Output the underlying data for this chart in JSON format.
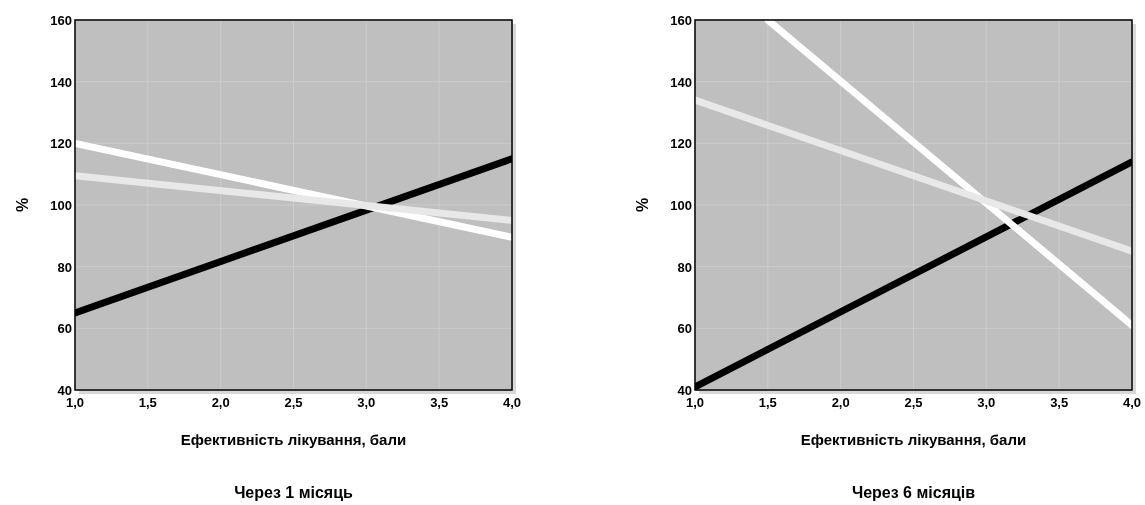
{
  "chart_data": [
    {
      "type": "line",
      "title": "Через 1 місяць",
      "xlabel": "Ефективність лікування, бали",
      "ylabel": "%",
      "xlim": [
        1,
        4
      ],
      "ylim": [
        40,
        160
      ],
      "xticks": [
        {
          "value": 1,
          "label": "1,0"
        },
        {
          "value": 1.5,
          "label": "1,5"
        },
        {
          "value": 2,
          "label": "2,0"
        },
        {
          "value": 2.5,
          "label": "2,5"
        },
        {
          "value": 3,
          "label": "3,0"
        },
        {
          "value": 3.5,
          "label": "3,5"
        },
        {
          "value": 4,
          "label": "4,0"
        }
      ],
      "yticks": [
        40,
        60,
        80,
        100,
        120,
        140,
        160
      ],
      "grid": true,
      "series": [
        {
          "color": "#000000",
          "x": [
            1,
            4
          ],
          "values": [
            65,
            115
          ]
        },
        {
          "color": "#ffffff",
          "x": [
            1,
            4
          ],
          "values": [
            120,
            89.5
          ]
        },
        {
          "color": "#e8e8e8",
          "x": [
            1,
            4
          ],
          "values": [
            109.5,
            95
          ]
        }
      ]
    },
    {
      "type": "line",
      "title": "Через 6 місяців",
      "xlabel": "Ефективність лікування, бали",
      "ylabel": "%",
      "xlim": [
        1,
        4
      ],
      "ylim": [
        40,
        160
      ],
      "xticks": [
        {
          "value": 1,
          "label": "1,0"
        },
        {
          "value": 1.5,
          "label": "1,5"
        },
        {
          "value": 2,
          "label": "2,0"
        },
        {
          "value": 2.5,
          "label": "2,5"
        },
        {
          "value": 3,
          "label": "3,0"
        },
        {
          "value": 3.5,
          "label": "3,5"
        },
        {
          "value": 4,
          "label": "4,0"
        }
      ],
      "yticks": [
        40,
        60,
        80,
        100,
        120,
        140,
        160
      ],
      "grid": true,
      "series": [
        {
          "color": "#000000",
          "x": [
            1,
            4
          ],
          "values": [
            41,
            114
          ]
        },
        {
          "color": "#ffffff",
          "x": [
            1.5,
            4
          ],
          "values": [
            160,
            61
          ]
        },
        {
          "color": "#e8e8e8",
          "x": [
            1,
            4
          ],
          "values": [
            134,
            85
          ]
        }
      ]
    }
  ]
}
